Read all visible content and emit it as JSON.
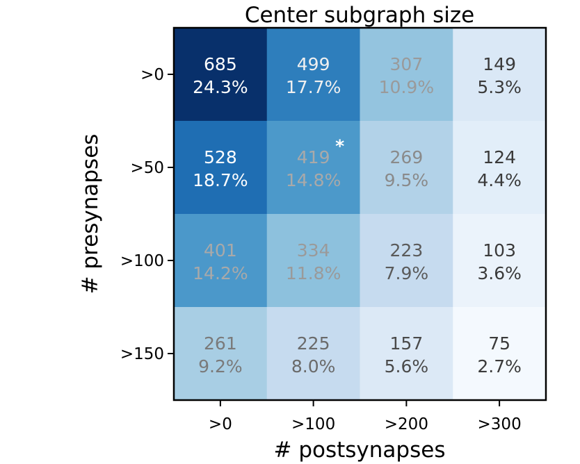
{
  "chart_data": {
    "type": "heatmap",
    "title": "Center subgraph size",
    "xlabel": "# postsynapses",
    "ylabel": "# presynapses",
    "x_categories": [
      ">0",
      ">100",
      ">200",
      ">300"
    ],
    "y_categories": [
      ">0",
      ">50",
      ">100",
      ">150"
    ],
    "colormap": "Blues",
    "cells": [
      [
        {
          "count": "685",
          "pct": "24.3%",
          "value": 685
        },
        {
          "count": "499",
          "pct": "17.7%",
          "value": 499
        },
        {
          "count": "307",
          "pct": "10.9%",
          "value": 307
        },
        {
          "count": "149",
          "pct": "5.3%",
          "value": 149
        }
      ],
      [
        {
          "count": "528",
          "pct": "18.7%",
          "value": 528
        },
        {
          "count": "419",
          "pct": "14.8%",
          "value": 419,
          "marker": "*"
        },
        {
          "count": "269",
          "pct": "9.5%",
          "value": 269
        },
        {
          "count": "124",
          "pct": "4.4%",
          "value": 124
        }
      ],
      [
        {
          "count": "401",
          "pct": "14.2%",
          "value": 401
        },
        {
          "count": "334",
          "pct": "11.8%",
          "value": 334
        },
        {
          "count": "223",
          "pct": "7.9%",
          "value": 223
        },
        {
          "count": "103",
          "pct": "3.6%",
          "value": 103
        }
      ],
      [
        {
          "count": "261",
          "pct": "9.2%",
          "value": 261
        },
        {
          "count": "225",
          "pct": "8.0%",
          "value": 225
        },
        {
          "count": "157",
          "pct": "5.6%",
          "value": 157
        },
        {
          "count": "75",
          "pct": "2.7%",
          "value": 75
        }
      ]
    ],
    "cell_colors": [
      [
        "#08306b",
        "#2e7ebc",
        "#94c4df",
        "#dae8f6"
      ],
      [
        "#1f6eb3",
        "#4c99ca",
        "#b2d2e8",
        "#e2eef9"
      ],
      [
        "#4b98ca",
        "#8dc1dd",
        "#c6dbef",
        "#ebf3fb"
      ],
      [
        "#a8cee4",
        "#c6dbef",
        "#dce9f6",
        "#f4f9fe"
      ]
    ],
    "text_colors": [
      [
        "#ffffff",
        "#f0f0f0",
        "#9a9a9a",
        "#3a3a3a"
      ],
      [
        "#ffffff",
        "#a9a9a9",
        "#8a8a8a",
        "#3a3a3a"
      ],
      [
        "#a9a9a9",
        "#9a9a9a",
        "#5a5a5a",
        "#3a3a3a"
      ],
      [
        "#7a7a7a",
        "#6a6a6a",
        "#4a4a4a",
        "#3a3a3a"
      ]
    ],
    "marker_color": "#ffffff"
  }
}
